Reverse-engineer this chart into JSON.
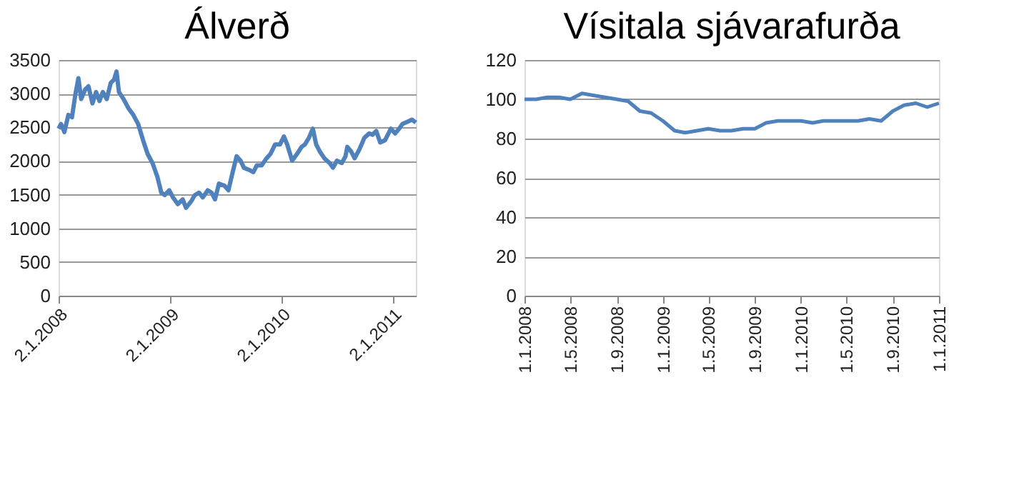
{
  "chart_data": [
    {
      "type": "line",
      "title": "Álverð",
      "line_style": "solid",
      "marker": "none",
      "grid": "y",
      "xlim": [
        "2008-01-02",
        "2011-03-19"
      ],
      "ylim": [
        0,
        3500
      ],
      "yticks": [
        0,
        500,
        1000,
        1500,
        2000,
        2500,
        3000,
        3500
      ],
      "xticks": [
        {
          "value": "2008-01-02",
          "label": "2.1.2008"
        },
        {
          "value": "2009-01-02",
          "label": "2.1.2009"
        },
        {
          "value": "2010-01-02",
          "label": "2.1.2010"
        },
        {
          "value": "2011-01-02",
          "label": "2.1.2011"
        }
      ],
      "x": [
        "2008-01-02",
        "2008-01-10",
        "2008-01-21",
        "2008-02-03",
        "2008-02-15",
        "2008-02-26",
        "2008-03-07",
        "2008-03-16",
        "2008-03-29",
        "2008-04-09",
        "2008-04-22",
        "2008-05-04",
        "2008-05-15",
        "2008-05-26",
        "2008-06-08",
        "2008-06-21",
        "2008-07-02",
        "2008-07-10",
        "2008-07-18",
        "2008-08-02",
        "2008-08-18",
        "2008-09-03",
        "2008-09-19",
        "2008-10-05",
        "2008-10-20",
        "2008-11-05",
        "2008-11-21",
        "2008-12-04",
        "2008-12-15",
        "2008-12-30",
        "2009-01-11",
        "2009-01-27",
        "2009-02-12",
        "2009-02-23",
        "2009-03-11",
        "2009-03-24",
        "2009-04-07",
        "2009-04-19",
        "2009-05-05",
        "2009-05-18",
        "2009-05-29",
        "2009-06-11",
        "2009-06-30",
        "2009-07-12",
        "2009-07-26",
        "2009-08-08",
        "2009-08-21",
        "2009-09-01",
        "2009-09-17",
        "2009-10-02",
        "2009-10-13",
        "2009-10-29",
        "2009-11-14",
        "2009-11-27",
        "2009-12-12",
        "2009-12-28",
        "2010-01-10",
        "2010-01-21",
        "2010-02-06",
        "2010-02-22",
        "2010-03-09",
        "2010-03-20",
        "2010-04-02",
        "2010-04-15",
        "2010-04-26",
        "2010-05-08",
        "2010-05-23",
        "2010-06-09",
        "2010-06-20",
        "2010-07-03",
        "2010-07-19",
        "2010-07-31",
        "2010-08-06",
        "2010-08-19",
        "2010-08-30",
        "2010-09-15",
        "2010-10-01",
        "2010-10-17",
        "2010-10-28",
        "2010-11-09",
        "2010-11-22",
        "2010-12-08",
        "2010-12-27",
        "2011-01-10",
        "2011-01-23",
        "2011-02-03",
        "2011-02-18",
        "2011-03-06",
        "2011-03-19"
      ],
      "series": [
        {
          "color": "#4f81bd",
          "values": [
            2480,
            2550,
            2430,
            2685,
            2650,
            2990,
            3230,
            2920,
            3060,
            3110,
            2855,
            3025,
            2890,
            3025,
            2920,
            3160,
            3210,
            3330,
            3025,
            2920,
            2785,
            2685,
            2550,
            2310,
            2105,
            1970,
            1765,
            1530,
            1495,
            1565,
            1460,
            1360,
            1430,
            1305,
            1395,
            1495,
            1530,
            1460,
            1565,
            1530,
            1430,
            1665,
            1630,
            1565,
            1835,
            2070,
            2005,
            1900,
            1870,
            1835,
            1935,
            1935,
            2040,
            2105,
            2245,
            2245,
            2365,
            2245,
            2005,
            2105,
            2210,
            2245,
            2345,
            2480,
            2245,
            2140,
            2040,
            1970,
            1900,
            2005,
            1970,
            2070,
            2210,
            2140,
            2040,
            2175,
            2345,
            2410,
            2390,
            2445,
            2275,
            2310,
            2480,
            2410,
            2480,
            2550,
            2580,
            2615,
            2570
          ]
        }
      ]
    },
    {
      "type": "line",
      "title": "Vísitala sjávarafurða",
      "line_style": "solid",
      "marker": "none",
      "grid": "y",
      "xlim": [
        "2008-01-01",
        "2011-01-01"
      ],
      "ylim": [
        0,
        120
      ],
      "yticks": [
        0,
        20,
        40,
        60,
        80,
        100,
        120
      ],
      "xticks": [
        {
          "value": "2008-01-01",
          "label": "1.1.2008"
        },
        {
          "value": "2008-05-01",
          "label": "1.5.2008"
        },
        {
          "value": "2008-09-01",
          "label": "1.9.2008"
        },
        {
          "value": "2009-01-01",
          "label": "1.1.2009"
        },
        {
          "value": "2009-05-01",
          "label": "1.5.2009"
        },
        {
          "value": "2009-09-01",
          "label": "1.9.2009"
        },
        {
          "value": "2010-01-01",
          "label": "1.1.2010"
        },
        {
          "value": "2010-05-01",
          "label": "1.5.2010"
        },
        {
          "value": "2010-09-01",
          "label": "1.9.2010"
        },
        {
          "value": "2011-01-01",
          "label": "1.1.2011"
        }
      ],
      "x": [
        "2008-01-01",
        "2008-02-01",
        "2008-03-01",
        "2008-04-01",
        "2008-05-01",
        "2008-06-01",
        "2008-07-01",
        "2008-08-01",
        "2008-09-01",
        "2008-10-01",
        "2008-11-01",
        "2008-12-01",
        "2009-01-01",
        "2009-02-01",
        "2009-03-01",
        "2009-04-01",
        "2009-05-01",
        "2009-06-01",
        "2009-07-01",
        "2009-08-01",
        "2009-09-01",
        "2009-10-01",
        "2009-11-01",
        "2009-12-01",
        "2010-01-01",
        "2010-02-01",
        "2010-03-01",
        "2010-04-01",
        "2010-05-01",
        "2010-06-01",
        "2010-07-01",
        "2010-08-01",
        "2010-09-01",
        "2010-10-01",
        "2010-11-01",
        "2010-12-01",
        "2011-01-01"
      ],
      "series": [
        {
          "color": "#4f81bd",
          "values": [
            100,
            100,
            101,
            101,
            100,
            103,
            102,
            101,
            100,
            99,
            94,
            93,
            89,
            84,
            83,
            84,
            85,
            84,
            84,
            85,
            85,
            88,
            89,
            89,
            89,
            88,
            89,
            89,
            89,
            89,
            90,
            89,
            94,
            97,
            98,
            96,
            98
          ]
        }
      ]
    }
  ]
}
